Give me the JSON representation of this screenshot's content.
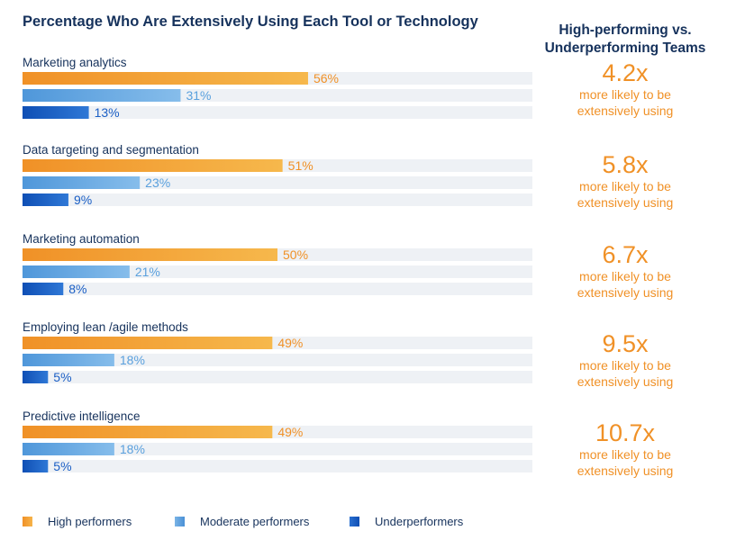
{
  "chart_data": {
    "type": "bar",
    "orientation": "horizontal",
    "title": "Percentage Who Are Extensively Using Each Tool or Technology",
    "categories": [
      "Marketing analytics",
      "Data targeting and segmentation",
      "Marketing automation",
      "Employing lean /agile methods",
      "Predictive intelligence"
    ],
    "series": [
      {
        "name": "High performers",
        "values": [
          56,
          51,
          50,
          49,
          49
        ],
        "color": "#f4a21e"
      },
      {
        "name": "Moderate performers",
        "values": [
          31,
          23,
          21,
          18,
          18
        ],
        "color": "#5aa0dd"
      },
      {
        "name": "Underperformers",
        "values": [
          13,
          9,
          8,
          5,
          5
        ],
        "color": "#1b5fc5"
      }
    ],
    "value_suffix": "%",
    "xlim": [
      0,
      100
    ],
    "background_track_color": "#eef1f5",
    "grid": false,
    "legend_position": "bottom"
  },
  "side_panel": {
    "title_line1": "High-performing vs.",
    "title_line2": "Underperforming Teams",
    "items": [
      {
        "multiplier": "4.2x",
        "line1": "more likely to be",
        "line2": "extensively using"
      },
      {
        "multiplier": "5.8x",
        "line1": "more likely to be",
        "line2": "extensively using"
      },
      {
        "multiplier": "6.7x",
        "line1": "more likely to be",
        "line2": "extensively using"
      },
      {
        "multiplier": "9.5x",
        "line1": "more likely to be",
        "line2": "extensively using"
      },
      {
        "multiplier": "10.7x",
        "line1": "more likely to be",
        "line2": "extensively using"
      }
    ]
  },
  "legend": [
    {
      "label": "High performers",
      "color": "#f4a21e"
    },
    {
      "label": "Moderate performers",
      "color": "#5aa0dd"
    },
    {
      "label": "Underperformers",
      "color": "#1b5fc5"
    }
  ],
  "colors": {
    "title": "#16325c",
    "accent_orange": "#f09127",
    "label_orange": "#f09127",
    "label_blue": "#5aa0dd",
    "label_dark_blue": "#1b5fc5"
  }
}
